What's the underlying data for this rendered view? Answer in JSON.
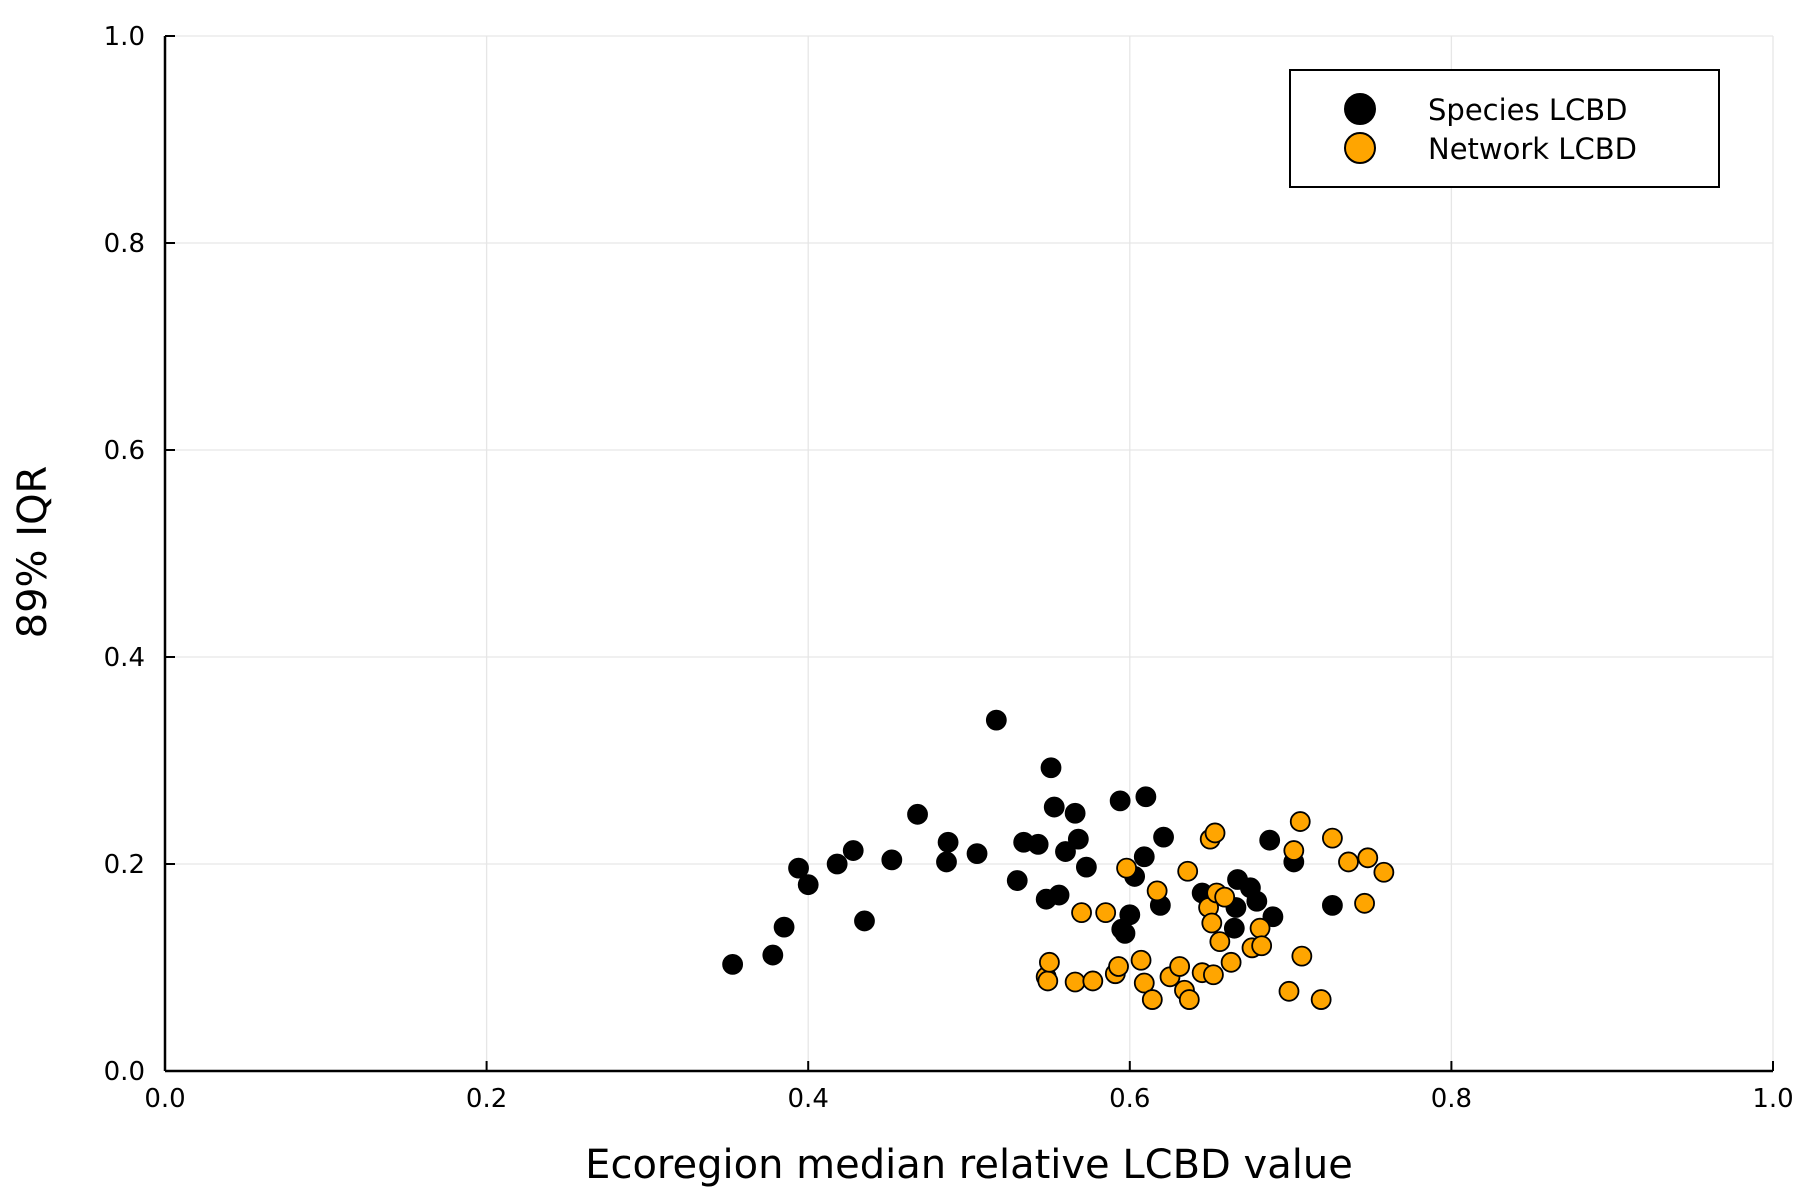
{
  "chart_data": {
    "type": "scatter",
    "xlabel": "Ecoregion median relative LCBD value",
    "ylabel": "89% IQR",
    "xlim": [
      0.0,
      1.0
    ],
    "ylim": [
      0.0,
      1.0
    ],
    "x_ticks": [
      "0.0",
      "0.2",
      "0.4",
      "0.6",
      "0.8",
      "1.0"
    ],
    "y_ticks": [
      "0.0",
      "0.2",
      "0.4",
      "0.6",
      "0.8",
      "1.0"
    ],
    "grid": true,
    "legend_position": "top-right",
    "series": [
      {
        "name": "Species LCBD",
        "color": "#000000",
        "points": [
          [
            0.353,
            0.103
          ],
          [
            0.378,
            0.112
          ],
          [
            0.385,
            0.139
          ],
          [
            0.394,
            0.196
          ],
          [
            0.4,
            0.18
          ],
          [
            0.418,
            0.2
          ],
          [
            0.428,
            0.213
          ],
          [
            0.435,
            0.145
          ],
          [
            0.452,
            0.204
          ],
          [
            0.468,
            0.248
          ],
          [
            0.486,
            0.202
          ],
          [
            0.487,
            0.221
          ],
          [
            0.505,
            0.21
          ],
          [
            0.517,
            0.339
          ],
          [
            0.53,
            0.184
          ],
          [
            0.534,
            0.221
          ],
          [
            0.543,
            0.219
          ],
          [
            0.548,
            0.166
          ],
          [
            0.551,
            0.293
          ],
          [
            0.553,
            0.255
          ],
          [
            0.556,
            0.17
          ],
          [
            0.56,
            0.212
          ],
          [
            0.566,
            0.249
          ],
          [
            0.568,
            0.224
          ],
          [
            0.573,
            0.197
          ],
          [
            0.594,
            0.261
          ],
          [
            0.595,
            0.137
          ],
          [
            0.597,
            0.133
          ],
          [
            0.6,
            0.151
          ],
          [
            0.603,
            0.188
          ],
          [
            0.609,
            0.207
          ],
          [
            0.61,
            0.265
          ],
          [
            0.619,
            0.16
          ],
          [
            0.621,
            0.226
          ],
          [
            0.645,
            0.172
          ],
          [
            0.665,
            0.138
          ],
          [
            0.666,
            0.158
          ],
          [
            0.667,
            0.185
          ],
          [
            0.675,
            0.177
          ],
          [
            0.679,
            0.164
          ],
          [
            0.687,
            0.223
          ],
          [
            0.689,
            0.149
          ],
          [
            0.702,
            0.202
          ],
          [
            0.726,
            0.16
          ]
        ]
      },
      {
        "name": "Network LCBD",
        "color": "#FFA500",
        "points": [
          [
            0.548,
            0.091
          ],
          [
            0.549,
            0.087
          ],
          [
            0.55,
            0.105
          ],
          [
            0.566,
            0.086
          ],
          [
            0.57,
            0.153
          ],
          [
            0.577,
            0.087
          ],
          [
            0.585,
            0.153
          ],
          [
            0.591,
            0.094
          ],
          [
            0.593,
            0.101
          ],
          [
            0.598,
            0.196
          ],
          [
            0.607,
            0.107
          ],
          [
            0.609,
            0.085
          ],
          [
            0.614,
            0.069
          ],
          [
            0.617,
            0.174
          ],
          [
            0.625,
            0.091
          ],
          [
            0.631,
            0.101
          ],
          [
            0.634,
            0.078
          ],
          [
            0.636,
            0.193
          ],
          [
            0.637,
            0.069
          ],
          [
            0.645,
            0.095
          ],
          [
            0.649,
            0.158
          ],
          [
            0.65,
            0.224
          ],
          [
            0.651,
            0.143
          ],
          [
            0.652,
            0.093
          ],
          [
            0.653,
            0.23
          ],
          [
            0.654,
            0.172
          ],
          [
            0.656,
            0.125
          ],
          [
            0.659,
            0.168
          ],
          [
            0.663,
            0.105
          ],
          [
            0.676,
            0.119
          ],
          [
            0.681,
            0.138
          ],
          [
            0.682,
            0.121
          ],
          [
            0.699,
            0.077
          ],
          [
            0.702,
            0.213
          ],
          [
            0.706,
            0.241
          ],
          [
            0.707,
            0.111
          ],
          [
            0.719,
            0.069
          ],
          [
            0.726,
            0.225
          ],
          [
            0.736,
            0.202
          ],
          [
            0.746,
            0.162
          ],
          [
            0.748,
            0.206
          ],
          [
            0.758,
            0.192
          ]
        ]
      }
    ]
  }
}
